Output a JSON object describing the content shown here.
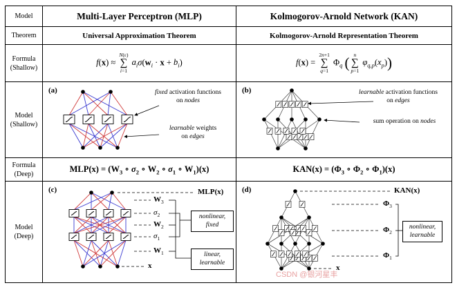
{
  "colors": {
    "edge-red": "#d03a3a",
    "edge-blue": "#3a3ad0",
    "watermark": "#e8a0a0"
  },
  "row_labels": {
    "model": "Model",
    "theorem": "Theorem",
    "formula_shallow_a": "Formula",
    "formula_shallow_b": "(Shallow)",
    "model_shallow_a": "Model",
    "model_shallow_b": "(Shallow)",
    "formula_deep_a": "Formula",
    "formula_deep_b": "(Deep)",
    "model_deep_a": "Model",
    "model_deep_b": "(Deep)"
  },
  "header": {
    "mlp_title": "Multi-Layer Perceptron (MLP)",
    "kan_title": "Kolmogorov-Arnold Network (KAN)"
  },
  "theorem": {
    "mlp": "Universal Approximation Theorem",
    "kan": "Kolmogorov-Arnold Representation Theorem"
  },
  "formula_shallow": {
    "mlp_html": "<i>f</i>(<b>x</b>) ≈ <span class=\"bigop\"><span class=\"lim\"><i>N</i>(ε)</span><span class=\"op\">∑</span><span class=\"lim\"><i>i</i>=1</span></span> <i>a<sub>i</sub></i><i>σ</i>(<b>w</b><i><sub>i</sub></i> · <b>x</b> + <i>b<sub>i</sub></i>)",
    "kan_html": "<i>f</i>(<b>x</b>) = <span class=\"bigop\"><span class=\"lim\">2<i>n</i>+1</span><span class=\"op\">∑</span><span class=\"lim\"><i>q</i>=1</span></span> Φ<i><sub>q</sub></i> <span class=\"bigparen\">(</span><span class=\"bigop\"><span class=\"lim\"><i>n</i></span><span class=\"op\">∑</span><span class=\"lim\"><i>p</i>=1</span></span> <i>φ<sub>q,p</sub></i>(<i>x<sub>p</sub></i>)<span class=\"bigparen\">)</span>"
  },
  "model_shallow": {
    "mlp": {
      "tag": "(a)",
      "ann_nodes_html": "<i>fixed</i> activation functions<br>on <i>nodes</i>",
      "ann_edges_html": "<i>learnable</i> weights<br>on <i>edges</i>"
    },
    "kan": {
      "tag": "(b)",
      "ann_edges_html": "<i>learnable</i> activation functions<br>on <i>edges</i>",
      "ann_nodes_html": "sum operation on <i>nodes</i>"
    }
  },
  "formula_deep": {
    "mlp_html": "MLP(<b>x</b>) = (<b>W</b><sub>3</sub> ∘ <i>σ</i><sub>2</sub> ∘ <b>W</b><sub>2</sub> ∘ <i>σ</i><sub>1</sub> ∘ <b>W</b><sub>1</sub>)(<b>x</b>)",
    "kan_html": "KAN(<b>x</b>) = (<b>Φ</b><sub>3</sub> ∘ <b>Φ</b><sub>2</sub> ∘ <b>Φ</b><sub>1</sub>)(<b>x</b>)"
  },
  "model_deep": {
    "mlp": {
      "tag": "(c)",
      "output_html": "MLP(<b>x</b>)",
      "w3_html": "<b>W</b><sub>3</sub>",
      "s2_html": "<i>σ</i><sub>2</sub>",
      "w2_html": "<b>W</b><sub>2</sub>",
      "s1_html": "<i>σ</i><sub>1</sub>",
      "w1_html": "<b>W</b><sub>1</sub>",
      "input_html": "<b>x</b>",
      "nonlinear_box_html": "<i>nonlinear,</i><br><i>fixed</i>",
      "linear_box_html": "<i>linear,</i><br><i>learnable</i>"
    },
    "kan": {
      "tag": "(d)",
      "output_html": "KAN(<b>x</b>)",
      "phi3_html": "<b>Φ</b><sub>3</sub>",
      "phi2_html": "<b>Φ</b><sub>2</sub>",
      "phi1_html": "<b>Φ</b><sub>1</sub>",
      "input_html": "<b>x</b>",
      "box_html": "<i>nonlinear,</i><br><i>learnable</i>"
    }
  },
  "watermark": "CSDN @银河星丰"
}
